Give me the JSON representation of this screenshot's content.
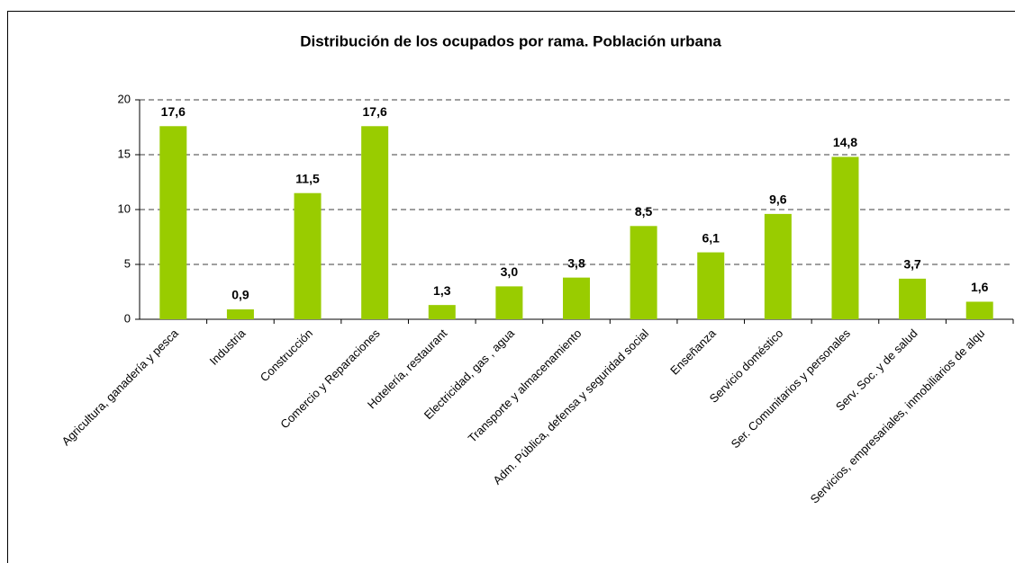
{
  "chart_data": {
    "type": "bar",
    "title": "Distribución de los ocupados por rama. Población urbana",
    "categories": [
      "Agricultura, ganadería y pesca",
      "Industria",
      "Construcción",
      "Comercio y Reparaciones",
      "Hotelería, restaurant",
      "Electricidad, gas , agua",
      "Transporte y almacenamiento",
      "Adm. Pública, defensa y seguridad social",
      "Enseñanza",
      "Servicio doméstico",
      "Ser. Comunitarios y personales",
      "Serv. Soc. y de salud",
      "Servicios, empresariales, inmobiliarios de alqu"
    ],
    "values": [
      17.6,
      0.9,
      11.5,
      17.6,
      1.3,
      3.0,
      3.8,
      8.5,
      6.1,
      9.6,
      14.8,
      3.7,
      1.6
    ],
    "value_labels": [
      "17,6",
      "0,9",
      "11,5",
      "17,6",
      "1,3",
      "3,0",
      "3,8",
      "8,5",
      "6,1",
      "9,6",
      "14,8",
      "3,7",
      "1,6"
    ],
    "color": "#99cc00",
    "ylim": [
      0,
      20
    ],
    "yticks": [
      0,
      5,
      10,
      15,
      20
    ],
    "grid": true
  }
}
